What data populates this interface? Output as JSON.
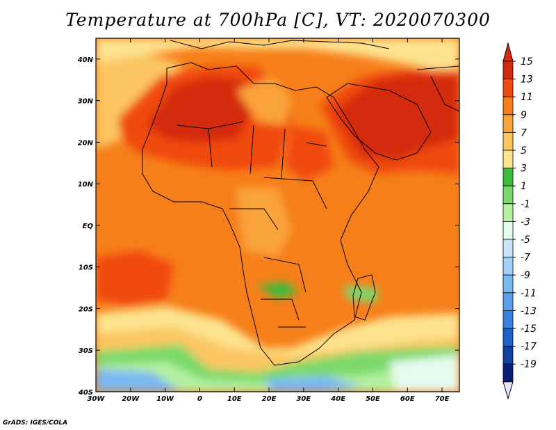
{
  "title": "Temperature at 700hPa [C], VT: 2020070300",
  "credit": "GrADS: IGES/COLA",
  "map": {
    "lon_range": [
      -30,
      75
    ],
    "lat_range": [
      -40,
      45
    ],
    "lon_ticks": [
      {
        "value": -30,
        "label": "30W"
      },
      {
        "value": -20,
        "label": "20W"
      },
      {
        "value": -10,
        "label": "10W"
      },
      {
        "value": 0,
        "label": "0"
      },
      {
        "value": 10,
        "label": "10E"
      },
      {
        "value": 20,
        "label": "20E"
      },
      {
        "value": 30,
        "label": "30E"
      },
      {
        "value": 40,
        "label": "40E"
      },
      {
        "value": 50,
        "label": "50E"
      },
      {
        "value": 60,
        "label": "60E"
      },
      {
        "value": 70,
        "label": "70E"
      }
    ],
    "lat_ticks": [
      {
        "value": 40,
        "label": "40N"
      },
      {
        "value": 30,
        "label": "30N"
      },
      {
        "value": 20,
        "label": "20N"
      },
      {
        "value": 10,
        "label": "10N"
      },
      {
        "value": 0,
        "label": "EQ"
      },
      {
        "value": -10,
        "label": "10S"
      },
      {
        "value": -20,
        "label": "20S"
      },
      {
        "value": -30,
        "label": "30S"
      },
      {
        "value": -40,
        "label": "40S"
      }
    ]
  },
  "colorbar": {
    "labels": [
      "15",
      "13",
      "11",
      "9",
      "7",
      "5",
      "3",
      "1",
      "-1",
      "-3",
      "-5",
      "-7",
      "-9",
      "-11",
      "-13",
      "-15",
      "-17",
      "-19"
    ],
    "colors": [
      "#d42a10",
      "#f04a10",
      "#f77f1a",
      "#f9a33a",
      "#fbc662",
      "#fde38e",
      "#3cbb3c",
      "#7ad96b",
      "#b4f0a0",
      "#e6fbf0",
      "#c8e6f8",
      "#a3d2f7",
      "#7ab8f2",
      "#5ca0ec",
      "#3a80e0",
      "#2060c8",
      "#1040a0",
      "#0a1e78"
    ],
    "top_color": "#d42a10",
    "bottom_color": "#e8e4fb"
  }
}
